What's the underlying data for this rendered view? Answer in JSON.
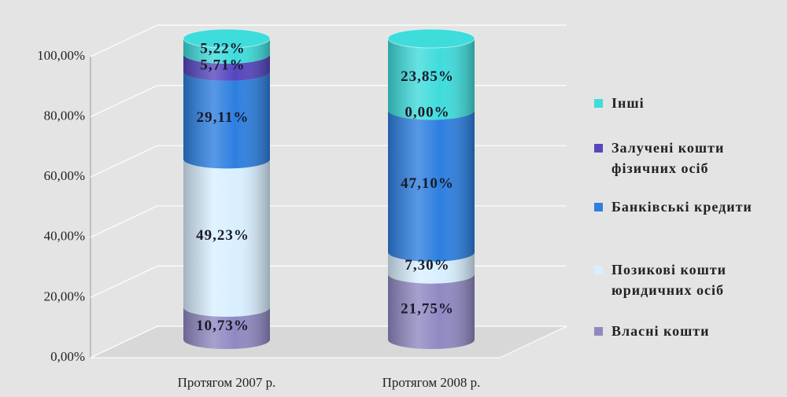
{
  "chart_data": {
    "type": "stacked_bar_3d",
    "categories": [
      "Протягом 2007 р.",
      "Протягом 2008 р."
    ],
    "series": [
      {
        "name": "Власні кошти",
        "color": "#8f89c2",
        "values": [
          10.73,
          21.75
        ],
        "value_labels": [
          "10,73%",
          "21,75%"
        ]
      },
      {
        "name": "Позикові кошти юридичних осіб",
        "color": "#d9efff",
        "values": [
          49.23,
          7.3
        ],
        "value_labels": [
          "49,23%",
          "7,30%"
        ]
      },
      {
        "name": "Банківські кредити",
        "color": "#2d7fe0",
        "values": [
          29.11,
          47.1
        ],
        "value_labels": [
          "29,11%",
          "47,10%"
        ]
      },
      {
        "name": "Залучені кошти фізичних осіб",
        "color": "#5546bf",
        "values": [
          5.71,
          0.0
        ],
        "value_labels": [
          "5,71%",
          "0,00%"
        ]
      },
      {
        "name": "Інші",
        "color": "#3fdcdc",
        "values": [
          5.22,
          23.85
        ],
        "value_labels": [
          "5,22%",
          "23,85%"
        ]
      }
    ],
    "ylim": [
      0,
      100
    ],
    "yticks": [
      {
        "value": 0,
        "label": "0,00%"
      },
      {
        "value": 20,
        "label": "20,00%"
      },
      {
        "value": 40,
        "label": "40,00%"
      },
      {
        "value": 60,
        "label": "60,00%"
      },
      {
        "value": 80,
        "label": "80,00%"
      },
      {
        "value": 100,
        "label": "100,00%"
      }
    ],
    "grid": true
  }
}
